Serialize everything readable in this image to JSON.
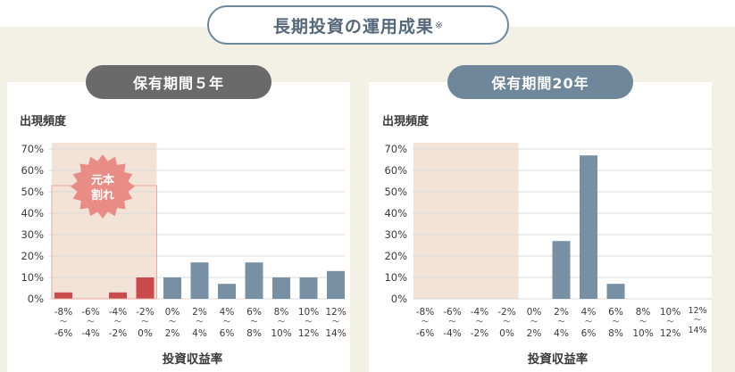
{
  "header": {
    "title": "長期投資の運用成果",
    "title_mark": "※"
  },
  "chart_data": [
    {
      "type": "bar",
      "title": "保有期間５年",
      "ylabel": "出現頻度",
      "xlabel": "投資収益率",
      "yticks": [
        "0%",
        "10%",
        "20%",
        "30%",
        "40%",
        "50%",
        "60%",
        "70%"
      ],
      "ylim": [
        0,
        70
      ],
      "categories": [
        [
          "-8%",
          "〜",
          "-6%"
        ],
        [
          "-6%",
          "〜",
          "-4%"
        ],
        [
          "-4%",
          "〜",
          "-2%"
        ],
        [
          "-2%",
          "〜",
          "0%"
        ],
        [
          "0%",
          "〜",
          "2%"
        ],
        [
          "2%",
          "〜",
          "4%"
        ],
        [
          "4%",
          "〜",
          "6%"
        ],
        [
          "6%",
          "〜",
          "8%"
        ],
        [
          "8%",
          "〜",
          "10%"
        ],
        [
          "10%",
          "〜",
          "12%"
        ],
        [
          "12%",
          "〜",
          "14%"
        ]
      ],
      "values": [
        3,
        0,
        3,
        10,
        10,
        17,
        7,
        17,
        10,
        10,
        13
      ],
      "annotation": "元本\n割れ",
      "loss_color": "#c94a4a",
      "gain_color": "#7890a3",
      "loss_region_color": "#f3e2d6"
    },
    {
      "type": "bar",
      "title": "保有期間20年",
      "ylabel": "出現頻度",
      "xlabel": "投資収益率",
      "yticks": [
        "0%",
        "10%",
        "20%",
        "30%",
        "40%",
        "50%",
        "60%",
        "70%"
      ],
      "ylim": [
        0,
        70
      ],
      "categories": [
        [
          "-8%",
          "〜",
          "-6%"
        ],
        [
          "-6%",
          "〜",
          "-4%"
        ],
        [
          "-4%",
          "〜",
          "-2%"
        ],
        [
          "-2%",
          "〜",
          "0%"
        ],
        [
          "0%",
          "〜",
          "2%"
        ],
        [
          "2%",
          "〜",
          "4%"
        ],
        [
          "4%",
          "〜",
          "6%"
        ],
        [
          "6%",
          "〜",
          "8%"
        ],
        [
          "8%",
          "〜",
          "10%"
        ],
        [
          "10%",
          "〜",
          "12%"
        ],
        [
          "12%",
          "〜",
          "14%"
        ]
      ],
      "values": [
        0,
        0,
        0,
        0,
        0,
        27,
        67,
        7,
        0,
        0,
        0
      ],
      "loss_color": "#c94a4a",
      "gain_color": "#7890a3",
      "loss_region_color": "#f3e2d6"
    }
  ]
}
